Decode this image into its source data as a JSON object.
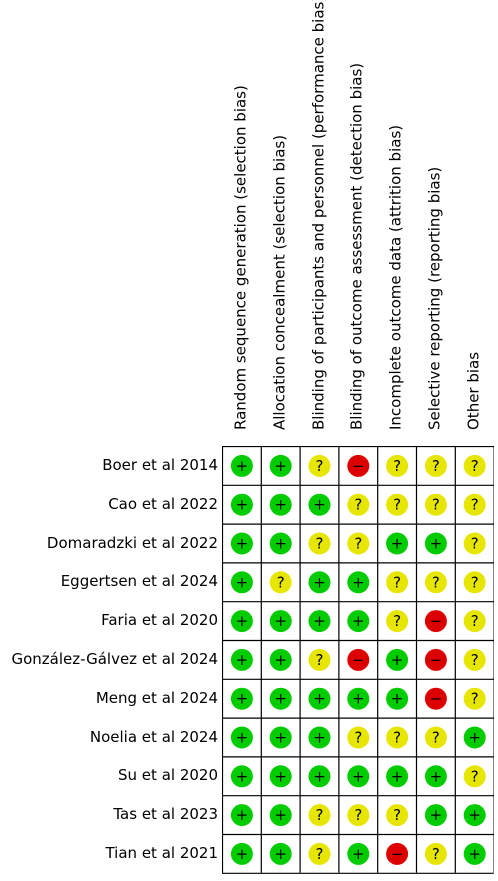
{
  "chart_data": {
    "type": "table",
    "domains": [
      "Random sequence generation (selection bias)",
      "Allocation concealment (selection bias)",
      "Blinding of participants and personnel (performance bias)",
      "Blinding of outcome assessment (detection bias)",
      "Incomplete outcome data (attrition bias)",
      "Selective reporting (reporting bias)",
      "Other bias"
    ],
    "studies": [
      "Boer et al 2014",
      "Cao et al 2022",
      "Domaradzki et al 2022",
      "Eggertsen et al 2024",
      "Faria et al 2020",
      "González-Gálvez et al 2024",
      "Meng et al 2024",
      "Noelia et al 2024",
      "Su et al 2020",
      "Tas et al 2023",
      "Tian et al 2021"
    ],
    "ratings": [
      [
        "low",
        "low",
        "unclear",
        "high",
        "unclear",
        "unclear",
        "unclear"
      ],
      [
        "low",
        "low",
        "low",
        "unclear",
        "unclear",
        "unclear",
        "unclear"
      ],
      [
        "low",
        "low",
        "unclear",
        "unclear",
        "low",
        "low",
        "unclear"
      ],
      [
        "low",
        "unclear",
        "low",
        "low",
        "unclear",
        "unclear",
        "unclear"
      ],
      [
        "low",
        "low",
        "low",
        "low",
        "unclear",
        "high",
        "unclear"
      ],
      [
        "low",
        "low",
        "unclear",
        "high",
        "low",
        "high",
        "unclear"
      ],
      [
        "low",
        "low",
        "low",
        "low",
        "low",
        "high",
        "unclear"
      ],
      [
        "low",
        "low",
        "low",
        "unclear",
        "unclear",
        "unclear",
        "low"
      ],
      [
        "low",
        "low",
        "low",
        "low",
        "low",
        "low",
        "unclear"
      ],
      [
        "low",
        "low",
        "unclear",
        "unclear",
        "unclear",
        "low",
        "low"
      ],
      [
        "low",
        "low",
        "unclear",
        "low",
        "high",
        "unclear",
        "low"
      ]
    ],
    "symbols": {
      "low": "+",
      "unclear": "?",
      "high": "−"
    },
    "colors": {
      "low": "#00cc00",
      "unclear": "#e6e600",
      "high": "#dd0000",
      "grid": "#000000"
    }
  }
}
